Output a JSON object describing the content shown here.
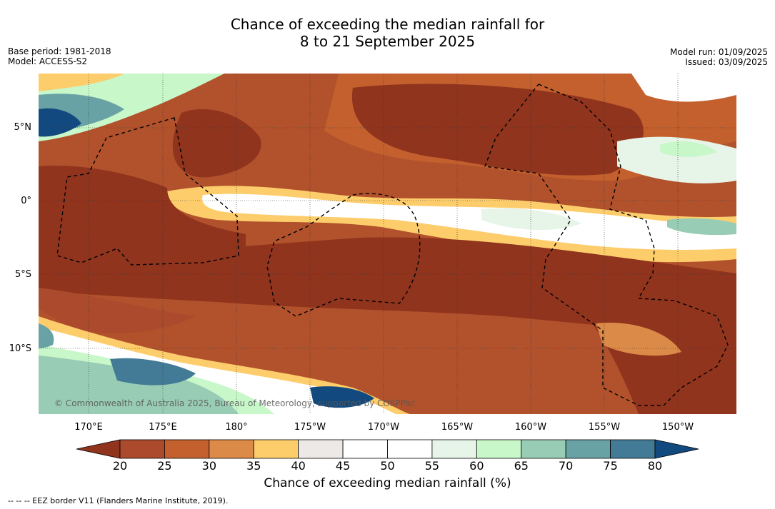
{
  "title": {
    "line1": "Chance of exceeding the median rainfall for",
    "line2": "8 to 21 September 2025"
  },
  "meta_left": {
    "base_period": "Base period: 1981-2018",
    "model": "Model: ACCESS-S2"
  },
  "meta_right": {
    "model_run": "Model run: 01/09/2025",
    "issued": "Issued: 03/09/2025"
  },
  "lat_labels": [
    "5°N",
    "0°",
    "5°S",
    "10°S"
  ],
  "lon_labels": [
    "170°E",
    "175°E",
    "180°",
    "175°W",
    "170°W",
    "165°W",
    "160°W",
    "155°W",
    "150°W"
  ],
  "credit": "© Commonwealth of Australia 2025, Bureau of Meteorology, supported by COSPPac",
  "colorbar": {
    "ticks": [
      "20",
      "25",
      "30",
      "35",
      "40",
      "45",
      "50",
      "55",
      "60",
      "65",
      "70",
      "75",
      "80"
    ],
    "colors": [
      "#ab4a2c",
      "#c3602e",
      "#dc8a47",
      "#fdcd6c",
      "#ede9e6",
      "#ffffff",
      "#ffffff",
      "#e7f4e8",
      "#c8f7c9",
      "#99ccb5",
      "#69a2a4",
      "#437b96"
    ],
    "under_color": "#90341e",
    "over_color": "#124a80",
    "label": "Chance of exceeding median rainfall (%)"
  },
  "footnote": "--  --  -- EEZ border V11 (Flanders Marine Institute, 2019)."
}
